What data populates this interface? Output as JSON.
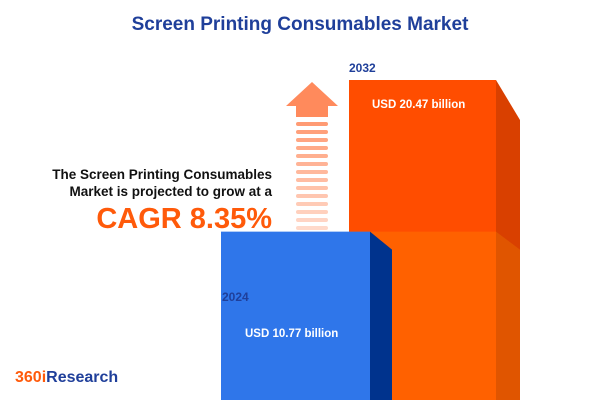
{
  "title": "Screen Printing Consumables Market",
  "description": "The Screen Printing Consumables Market is projected to grow at a",
  "cagr_label": "CAGR 8.35%",
  "logo": {
    "part1": "360i",
    "part2": "Research"
  },
  "colors": {
    "bar_2024": "#2f76ea",
    "bar_2032": "#ff4d00",
    "accent": "#ff5a0a",
    "title": "#1f3f9a"
  },
  "chart_data": {
    "type": "bar",
    "categories": [
      "2024",
      "2032"
    ],
    "values": [
      10.77,
      20.47
    ],
    "unit": "USD billion",
    "data_labels": [
      "USD 10.77 billion",
      "USD 20.47 billion"
    ],
    "cagr_percent": 8.35
  }
}
